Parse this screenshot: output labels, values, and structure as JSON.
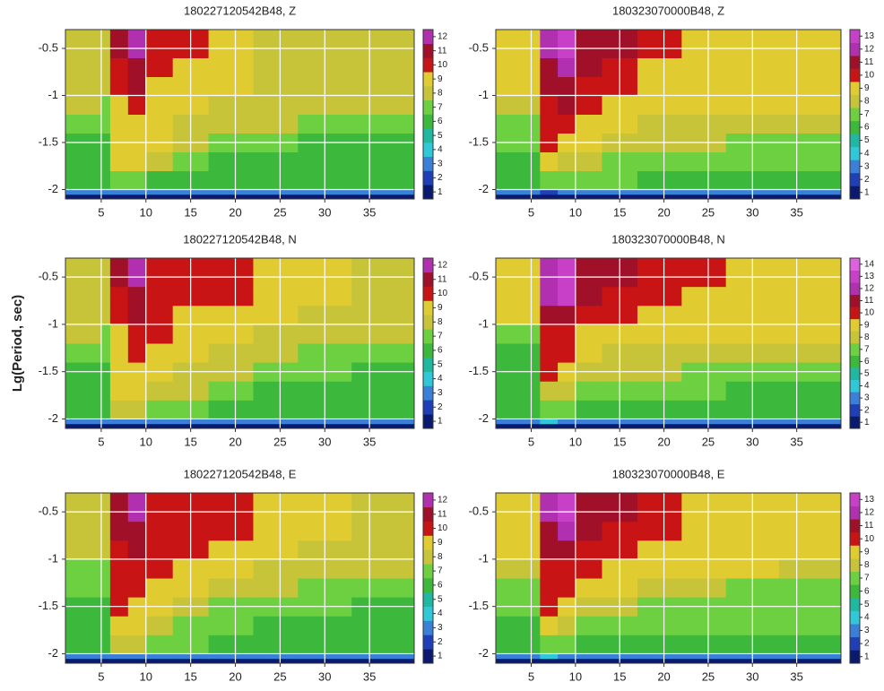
{
  "chart_data": [
    {
      "type": "heatmap",
      "title": "180227120542B48, Z",
      "x_edges": [
        1,
        5,
        6,
        8,
        10,
        13,
        17,
        22,
        27,
        33,
        40
      ],
      "y_edges": [
        -2.1,
        -2.05,
        -2,
        -1.8,
        -1.6,
        -1.4,
        -1.2,
        -1,
        -0.8,
        -0.6,
        -0.3
      ],
      "z": [
        [
          1,
          1,
          1,
          1,
          1,
          1,
          1,
          1,
          1,
          1
        ],
        [
          3,
          3,
          3,
          3,
          3,
          3,
          3,
          3,
          3,
          3
        ],
        [
          6,
          6,
          7,
          7,
          6,
          6,
          6,
          6,
          6,
          6
        ],
        [
          6,
          6,
          9,
          9,
          8,
          7,
          6,
          6,
          6,
          6
        ],
        [
          6,
          6,
          9,
          9,
          9,
          8,
          7,
          7,
          6,
          6
        ],
        [
          7,
          7,
          9,
          9,
          9,
          8,
          8,
          8,
          7,
          7
        ],
        [
          8,
          7,
          9,
          10,
          9,
          9,
          8,
          8,
          8,
          8
        ],
        [
          8,
          8,
          10,
          11,
          9,
          9,
          9,
          8,
          8,
          8
        ],
        [
          8,
          8,
          10,
          11,
          10,
          9,
          9,
          8,
          8,
          8
        ],
        [
          8,
          8,
          11,
          12,
          10,
          10,
          9,
          8,
          8,
          8
        ]
      ],
      "xlim": [
        1,
        40
      ],
      "ylim": [
        -2.1,
        -0.3
      ],
      "xticks": [
        5,
        10,
        15,
        20,
        25,
        30,
        35
      ],
      "yticks": [
        -2,
        -1.5,
        -1,
        -0.5
      ],
      "grid": true,
      "colorbar_ticks": [
        1,
        2,
        3,
        4,
        5,
        6,
        7,
        8,
        9,
        10,
        11,
        12
      ],
      "colors": [
        "#0a1a6e",
        "#1f3fb8",
        "#3a7fd8",
        "#2fc8d8",
        "#20b8a0",
        "#3cb83c",
        "#6cd040",
        "#c8c43a",
        "#e0cc30",
        "#c81414",
        "#a01028",
        "#b030b0",
        "#c840c8",
        "#e060e0"
      ]
    },
    {
      "type": "heatmap",
      "title": "180323070000B48, Z",
      "x_edges": [
        1,
        5,
        6,
        8,
        10,
        13,
        17,
        22,
        27,
        33,
        40
      ],
      "y_edges": [
        -2.1,
        -2.05,
        -2,
        -1.8,
        -1.6,
        -1.4,
        -1.2,
        -1,
        -0.8,
        -0.6,
        -0.3
      ],
      "z": [
        [
          1,
          1,
          1,
          1,
          1,
          1,
          1,
          1,
          1,
          1
        ],
        [
          3,
          3,
          2,
          3,
          3,
          3,
          3,
          3,
          3,
          3
        ],
        [
          6,
          6,
          7,
          7,
          7,
          7,
          6,
          6,
          6,
          6
        ],
        [
          6,
          6,
          9,
          8,
          8,
          7,
          7,
          7,
          7,
          7
        ],
        [
          7,
          7,
          10,
          9,
          9,
          8,
          8,
          8,
          7,
          7
        ],
        [
          7,
          7,
          10,
          10,
          9,
          9,
          8,
          8,
          8,
          8
        ],
        [
          8,
          8,
          10,
          11,
          10,
          9,
          9,
          9,
          9,
          9
        ],
        [
          9,
          9,
          11,
          11,
          10,
          10,
          9,
          9,
          9,
          9
        ],
        [
          9,
          9,
          11,
          12,
          11,
          10,
          9,
          9,
          9,
          9
        ],
        [
          9,
          9,
          12,
          13,
          11,
          11,
          10,
          9,
          9,
          9
        ]
      ],
      "xlim": [
        1,
        40
      ],
      "ylim": [
        -2.1,
        -0.3
      ],
      "xticks": [
        5,
        10,
        15,
        20,
        25,
        30,
        35
      ],
      "yticks": [
        -2,
        -1.5,
        -1,
        -0.5
      ],
      "grid": true,
      "colorbar_ticks": [
        1,
        2,
        3,
        4,
        5,
        6,
        7,
        8,
        9,
        10,
        11,
        12,
        13
      ],
      "colors": [
        "#0a1a6e",
        "#1f3fb8",
        "#3a7fd8",
        "#2fc8d8",
        "#20b8a0",
        "#3cb83c",
        "#6cd040",
        "#c8c43a",
        "#e0cc30",
        "#c81414",
        "#a01028",
        "#b030b0",
        "#c840c8",
        "#e060e0"
      ]
    },
    {
      "type": "heatmap",
      "title": "180227120542B48, N",
      "ylabel": "Lg(Period, sec)",
      "x_edges": [
        1,
        5,
        6,
        8,
        10,
        13,
        17,
        22,
        27,
        33,
        40
      ],
      "y_edges": [
        -2.1,
        -2.05,
        -2,
        -1.8,
        -1.6,
        -1.4,
        -1.2,
        -1,
        -0.8,
        -0.6,
        -0.3
      ],
      "z": [
        [
          1,
          1,
          1,
          1,
          1,
          1,
          1,
          1,
          1,
          1
        ],
        [
          3,
          3,
          3,
          3,
          3,
          3,
          3,
          3,
          3,
          3
        ],
        [
          6,
          6,
          8,
          8,
          7,
          7,
          6,
          6,
          6,
          6
        ],
        [
          6,
          6,
          9,
          9,
          8,
          8,
          7,
          6,
          6,
          6
        ],
        [
          6,
          6,
          9,
          9,
          9,
          8,
          8,
          7,
          7,
          6
        ],
        [
          7,
          7,
          9,
          10,
          9,
          9,
          8,
          8,
          7,
          7
        ],
        [
          8,
          7,
          9,
          10,
          10,
          9,
          9,
          8,
          8,
          8
        ],
        [
          8,
          8,
          10,
          11,
          10,
          9,
          9,
          9,
          8,
          8
        ],
        [
          8,
          8,
          10,
          11,
          10,
          10,
          10,
          9,
          9,
          8
        ],
        [
          8,
          8,
          11,
          12,
          10,
          10,
          10,
          9,
          9,
          8
        ]
      ],
      "xlim": [
        1,
        40
      ],
      "ylim": [
        -2.1,
        -0.3
      ],
      "xticks": [
        5,
        10,
        15,
        20,
        25,
        30,
        35
      ],
      "yticks": [
        -2,
        -1.5,
        -1,
        -0.5
      ],
      "grid": true,
      "colorbar_ticks": [
        1,
        2,
        3,
        4,
        5,
        6,
        7,
        8,
        9,
        10,
        11,
        12
      ],
      "colors": [
        "#0a1a6e",
        "#1f3fb8",
        "#3a7fd8",
        "#2fc8d8",
        "#20b8a0",
        "#3cb83c",
        "#6cd040",
        "#c8c43a",
        "#e0cc30",
        "#c81414",
        "#a01028",
        "#b030b0",
        "#c840c8",
        "#e060e0"
      ]
    },
    {
      "type": "heatmap",
      "title": "180323070000B48, N",
      "x_edges": [
        1,
        5,
        6,
        8,
        10,
        13,
        17,
        22,
        27,
        33,
        40
      ],
      "y_edges": [
        -2.1,
        -2.05,
        -2,
        -1.8,
        -1.6,
        -1.4,
        -1.2,
        -1,
        -0.8,
        -0.6,
        -0.3
      ],
      "z": [
        [
          1,
          1,
          1,
          1,
          1,
          1,
          1,
          1,
          1,
          1
        ],
        [
          3,
          3,
          4,
          3,
          3,
          3,
          3,
          3,
          3,
          3
        ],
        [
          6,
          6,
          7,
          7,
          6,
          6,
          6,
          6,
          6,
          6
        ],
        [
          6,
          6,
          8,
          8,
          7,
          7,
          7,
          7,
          6,
          6
        ],
        [
          6,
          6,
          10,
          9,
          8,
          8,
          8,
          7,
          7,
          7
        ],
        [
          6,
          6,
          10,
          10,
          9,
          8,
          8,
          8,
          8,
          8
        ],
        [
          7,
          7,
          10,
          10,
          9,
          9,
          9,
          9,
          9,
          9
        ],
        [
          9,
          9,
          11,
          11,
          10,
          10,
          9,
          9,
          9,
          9
        ],
        [
          9,
          9,
          12,
          13,
          11,
          10,
          10,
          9,
          9,
          9
        ],
        [
          9,
          9,
          12,
          13,
          11,
          11,
          10,
          10,
          9,
          9
        ]
      ],
      "xlim": [
        1,
        40
      ],
      "ylim": [
        -2.1,
        -0.3
      ],
      "xticks": [
        5,
        10,
        15,
        20,
        25,
        30,
        35
      ],
      "yticks": [
        -2,
        -1.5,
        -1,
        -0.5
      ],
      "grid": true,
      "colorbar_ticks": [
        1,
        2,
        3,
        4,
        5,
        6,
        7,
        8,
        9,
        10,
        11,
        12,
        13,
        14
      ],
      "colors": [
        "#0a1a6e",
        "#1f3fb8",
        "#3a7fd8",
        "#2fc8d8",
        "#20b8a0",
        "#3cb83c",
        "#6cd040",
        "#c8c43a",
        "#e0cc30",
        "#c81414",
        "#a01028",
        "#b030b0",
        "#c840c8",
        "#e060e0"
      ]
    },
    {
      "type": "heatmap",
      "title": "180227120542B48, E",
      "x_edges": [
        1,
        5,
        6,
        8,
        10,
        13,
        17,
        22,
        27,
        33,
        40
      ],
      "y_edges": [
        -2.1,
        -2.05,
        -2,
        -1.8,
        -1.6,
        -1.4,
        -1.2,
        -1,
        -0.8,
        -0.6,
        -0.3
      ],
      "z": [
        [
          1,
          1,
          1,
          1,
          1,
          1,
          1,
          1,
          1,
          1
        ],
        [
          3,
          3,
          3,
          3,
          3,
          3,
          3,
          3,
          3,
          3
        ],
        [
          6,
          6,
          8,
          8,
          7,
          7,
          6,
          6,
          6,
          6
        ],
        [
          6,
          6,
          9,
          9,
          8,
          7,
          7,
          6,
          6,
          6
        ],
        [
          6,
          6,
          10,
          9,
          9,
          8,
          7,
          7,
          7,
          6
        ],
        [
          7,
          7,
          10,
          10,
          9,
          9,
          8,
          8,
          7,
          7
        ],
        [
          7,
          7,
          10,
          10,
          10,
          9,
          9,
          8,
          8,
          8
        ],
        [
          8,
          8,
          10,
          11,
          10,
          10,
          9,
          9,
          8,
          8
        ],
        [
          8,
          8,
          11,
          11,
          10,
          10,
          10,
          9,
          9,
          8
        ],
        [
          8,
          8,
          11,
          12,
          10,
          10,
          10,
          9,
          9,
          8
        ]
      ],
      "xlim": [
        1,
        40
      ],
      "ylim": [
        -2.1,
        -0.3
      ],
      "xticks": [
        5,
        10,
        15,
        20,
        25,
        30,
        35
      ],
      "yticks": [
        -2,
        -1.5,
        -1,
        -0.5
      ],
      "grid": true,
      "colorbar_ticks": [
        1,
        2,
        3,
        4,
        5,
        6,
        7,
        8,
        9,
        10,
        11,
        12
      ],
      "colors": [
        "#0a1a6e",
        "#1f3fb8",
        "#3a7fd8",
        "#2fc8d8",
        "#20b8a0",
        "#3cb83c",
        "#6cd040",
        "#c8c43a",
        "#e0cc30",
        "#c81414",
        "#a01028",
        "#b030b0",
        "#c840c8",
        "#e060e0"
      ]
    },
    {
      "type": "heatmap",
      "title": "180323070000B48, E",
      "x_edges": [
        1,
        5,
        6,
        8,
        10,
        13,
        17,
        22,
        27,
        33,
        40
      ],
      "y_edges": [
        -2.1,
        -2.05,
        -2,
        -1.8,
        -1.6,
        -1.4,
        -1.2,
        -1,
        -0.8,
        -0.6,
        -0.3
      ],
      "z": [
        [
          1,
          1,
          1,
          1,
          1,
          1,
          1,
          1,
          1,
          1
        ],
        [
          3,
          3,
          4,
          3,
          3,
          3,
          3,
          3,
          3,
          3
        ],
        [
          6,
          6,
          7,
          7,
          6,
          6,
          6,
          6,
          6,
          6
        ],
        [
          6,
          6,
          9,
          8,
          7,
          7,
          7,
          7,
          7,
          7
        ],
        [
          7,
          7,
          10,
          9,
          8,
          8,
          7,
          7,
          7,
          7
        ],
        [
          7,
          7,
          10,
          10,
          9,
          9,
          8,
          8,
          7,
          7
        ],
        [
          8,
          8,
          10,
          10,
          10,
          9,
          9,
          9,
          9,
          8
        ],
        [
          9,
          9,
          11,
          11,
          10,
          10,
          9,
          9,
          9,
          9
        ],
        [
          9,
          9,
          11,
          12,
          11,
          10,
          10,
          9,
          9,
          9
        ],
        [
          9,
          9,
          12,
          13,
          11,
          11,
          10,
          9,
          9,
          9
        ]
      ],
      "xlim": [
        1,
        40
      ],
      "ylim": [
        -2.1,
        -0.3
      ],
      "xticks": [
        5,
        10,
        15,
        20,
        25,
        30,
        35
      ],
      "yticks": [
        -2,
        -1.5,
        -1,
        -0.5
      ],
      "grid": true,
      "colorbar_ticks": [
        1,
        2,
        3,
        4,
        5,
        6,
        7,
        8,
        9,
        10,
        11,
        12,
        13
      ],
      "colors": [
        "#0a1a6e",
        "#1f3fb8",
        "#3a7fd8",
        "#2fc8d8",
        "#20b8a0",
        "#3cb83c",
        "#6cd040",
        "#c8c43a",
        "#e0cc30",
        "#c81414",
        "#a01028",
        "#b030b0",
        "#c840c8",
        "#e060e0"
      ]
    }
  ]
}
